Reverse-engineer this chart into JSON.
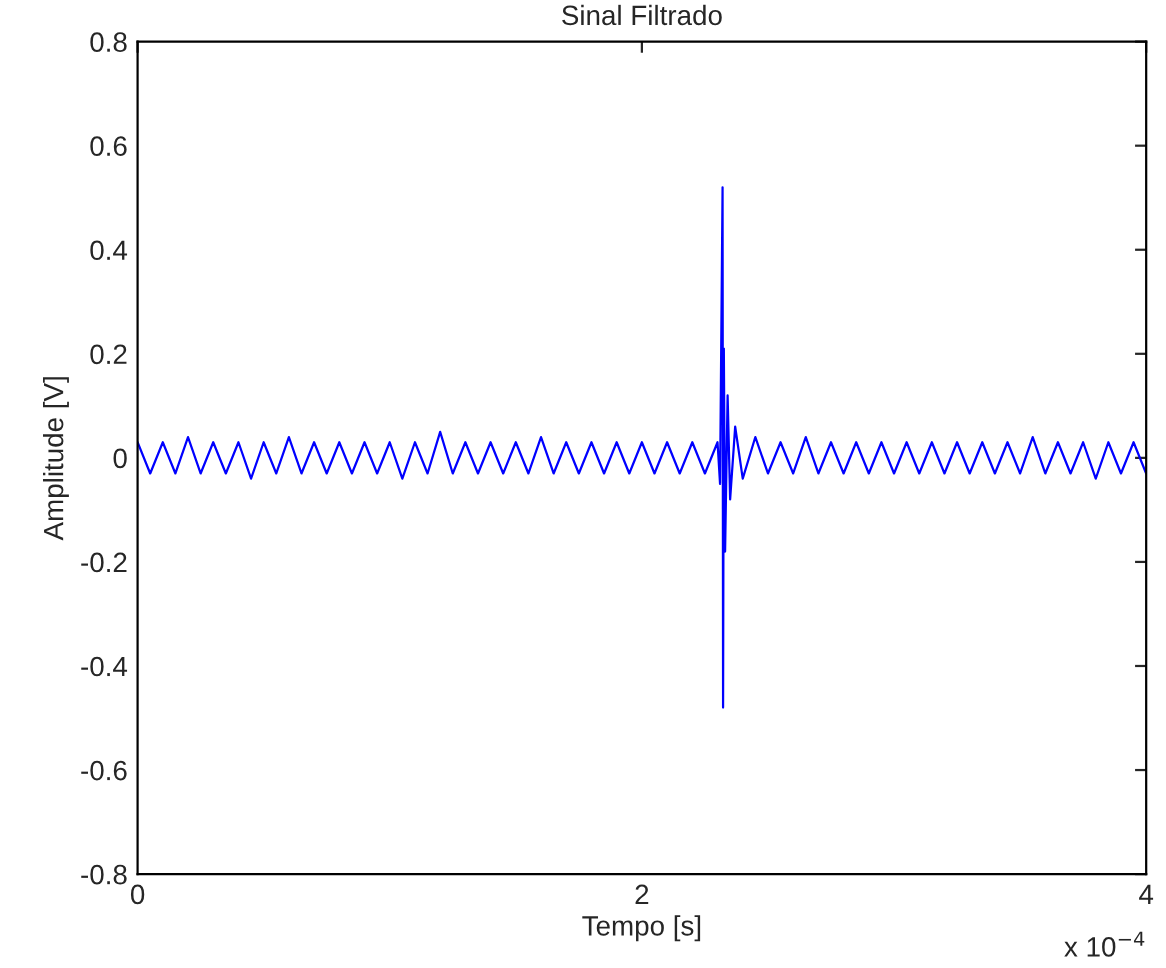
{
  "chart_data": {
    "type": "line",
    "title": "Sinal Filtrado",
    "xlabel": "Tempo [s]",
    "ylabel": "Amplitude [V]",
    "xlim": [
      0,
      4
    ],
    "ylim": [
      -0.8,
      0.8
    ],
    "xticks": [
      0,
      2,
      4
    ],
    "yticks": [
      -0.8,
      -0.6,
      -0.4,
      -0.2,
      0,
      0.2,
      0.4,
      0.6,
      0.8
    ],
    "annotations": [
      "x 10$^{−4}$"
    ],
    "series": [
      {
        "color": "#0000ff",
        "x": [
          0,
          0.05,
          0.1,
          0.15,
          0.2,
          0.25,
          0.3,
          0.35,
          0.4,
          0.45,
          0.5,
          0.55,
          0.6,
          0.65,
          0.7,
          0.75,
          0.8,
          0.85,
          0.9,
          0.95,
          1.0,
          1.05,
          1.1,
          1.15,
          1.2,
          1.25,
          1.3,
          1.35,
          1.4,
          1.45,
          1.5,
          1.55,
          1.6,
          1.65,
          1.7,
          1.75,
          1.8,
          1.85,
          1.9,
          1.95,
          2.0,
          2.05,
          2.1,
          2.15,
          2.2,
          2.25,
          2.3,
          2.31,
          2.32,
          2.322,
          2.325,
          2.33,
          2.34,
          2.35,
          2.37,
          2.4,
          2.45,
          2.5,
          2.55,
          2.6,
          2.65,
          2.7,
          2.75,
          2.8,
          2.85,
          2.9,
          2.95,
          3.0,
          3.05,
          3.1,
          3.15,
          3.2,
          3.25,
          3.3,
          3.35,
          3.4,
          3.45,
          3.5,
          3.55,
          3.6,
          3.65,
          3.7,
          3.75,
          3.8,
          3.85,
          3.9,
          3.95,
          4.0
        ],
        "values": [
          0.03,
          -0.03,
          0.03,
          -0.03,
          0.04,
          -0.03,
          0.03,
          -0.03,
          0.03,
          -0.04,
          0.03,
          -0.03,
          0.04,
          -0.03,
          0.03,
          -0.03,
          0.03,
          -0.03,
          0.03,
          -0.03,
          0.03,
          -0.04,
          0.03,
          -0.03,
          0.05,
          -0.03,
          0.03,
          -0.03,
          0.03,
          -0.03,
          0.03,
          -0.03,
          0.04,
          -0.03,
          0.03,
          -0.03,
          0.03,
          -0.03,
          0.03,
          -0.03,
          0.03,
          -0.03,
          0.03,
          -0.03,
          0.03,
          -0.03,
          0.03,
          -0.05,
          0.52,
          -0.48,
          0.21,
          -0.18,
          0.12,
          -0.08,
          0.06,
          -0.04,
          0.04,
          -0.03,
          0.03,
          -0.03,
          0.04,
          -0.03,
          0.03,
          -0.03,
          0.03,
          -0.03,
          0.03,
          -0.03,
          0.03,
          -0.03,
          0.03,
          -0.03,
          0.03,
          -0.03,
          0.03,
          -0.03,
          0.03,
          -0.03,
          0.04,
          -0.03,
          0.03,
          -0.03,
          0.03,
          -0.04,
          0.03,
          -0.03,
          0.03,
          -0.03
        ]
      }
    ]
  }
}
